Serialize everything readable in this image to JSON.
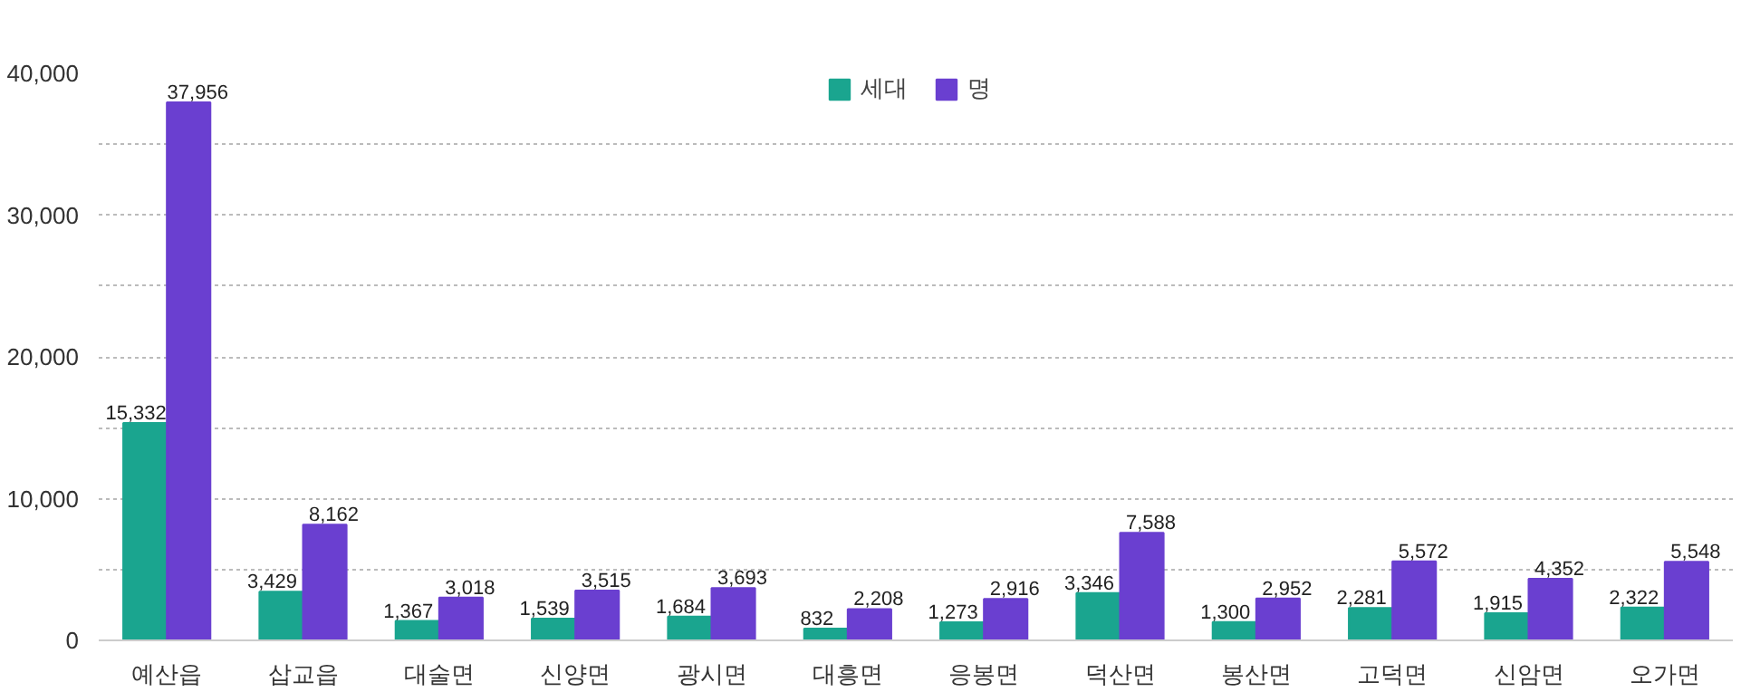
{
  "chart_data": {
    "type": "bar",
    "categories": [
      "예산읍",
      "삽교읍",
      "대술면",
      "신양면",
      "광시면",
      "대흥면",
      "응봉면",
      "덕산면",
      "봉산면",
      "고덕면",
      "신암면",
      "오가면"
    ],
    "series": [
      {
        "name": "세대",
        "color": "#1aa58f",
        "values": [
          15332,
          3429,
          1367,
          1539,
          1684,
          832,
          1273,
          3346,
          1300,
          2281,
          1915,
          2322
        ],
        "value_labels": [
          "15,332",
          "3,429",
          "1,367",
          "1,539",
          "1,684",
          "832",
          "1,273",
          "3,346",
          "1,300",
          "2,281",
          "1,915",
          "2,322"
        ]
      },
      {
        "name": "명",
        "color": "#6a3fd0",
        "values": [
          37956,
          8162,
          3018,
          3515,
          3693,
          2208,
          2916,
          7588,
          2952,
          5572,
          4352,
          5548
        ],
        "value_labels": [
          "37,956",
          "8,162",
          "3,018",
          "3,515",
          "3,693",
          "2,208",
          "2,916",
          "7,588",
          "2,952",
          "5,572",
          "4,352",
          "5,548"
        ]
      }
    ],
    "ylim": [
      0,
      40000
    ],
    "yticks": [
      {
        "value": 0,
        "label": "0"
      },
      {
        "value": 5000,
        "label": null
      },
      {
        "value": 10000,
        "label": "10,000"
      },
      {
        "value": 15000,
        "label": null
      },
      {
        "value": 20000,
        "label": "20,000"
      },
      {
        "value": 25000,
        "label": null
      },
      {
        "value": 30000,
        "label": "30,000"
      },
      {
        "value": 35000,
        "label": null
      },
      {
        "value": 40000,
        "label": "40,000"
      }
    ],
    "grid": "y",
    "legend": "top"
  }
}
